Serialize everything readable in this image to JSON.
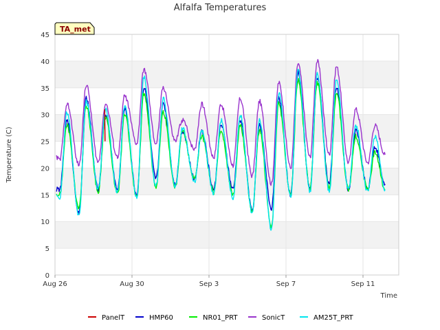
{
  "chart_data": {
    "type": "line",
    "title": "Alfalfa Temperatures",
    "xlabel": "Time",
    "ylabel": "Temperature (C)",
    "badge": "TA_met",
    "ylim": [
      0,
      45
    ],
    "yticks": [
      0,
      5,
      10,
      15,
      20,
      25,
      30,
      35,
      40,
      45
    ],
    "xlim": [
      "Aug 26",
      "Sep 13"
    ],
    "xtick_labels": [
      "Aug 26",
      "Aug 30",
      "Sep 3",
      "Sep 7",
      "Sep 11"
    ],
    "xtick_days": [
      0,
      4,
      8,
      12,
      16
    ],
    "legend_position": "bottom",
    "colors": {
      "PanelT": "#cc0000",
      "HMP60": "#0000cc",
      "NR01_PRT": "#00ee00",
      "SonicT": "#9933cc",
      "AM25T_PRT": "#00e5ee"
    },
    "day_extremes_note_units": "degrees C, daily min/max per series",
    "series": [
      {
        "name": "PanelT",
        "max": [
          null,
          null,
          31.0,
          null,
          null,
          null,
          null,
          null,
          null,
          null,
          null,
          null,
          null,
          null,
          null,
          null,
          null
        ],
        "min": [
          null,
          null,
          25.0,
          null,
          null,
          null,
          null,
          null,
          null,
          null,
          null,
          null,
          null,
          null,
          null,
          null,
          null
        ]
      },
      {
        "name": "HMP60",
        "max": [
          29,
          33,
          30,
          31,
          35,
          32,
          27,
          27,
          28,
          29,
          28,
          33,
          38,
          37,
          35,
          27,
          24
        ],
        "min": [
          16,
          11.5,
          16,
          16,
          15,
          18,
          17,
          18,
          16,
          16,
          12,
          12.5,
          15,
          16,
          17,
          16,
          16
        ],
        "start": 16,
        "end": 17
      },
      {
        "name": "NR01_PRT",
        "max": [
          28,
          31.5,
          29.5,
          30,
          34,
          30.5,
          27,
          26,
          27,
          28,
          27,
          32,
          36.5,
          36,
          34,
          26,
          23
        ],
        "min": [
          15,
          12.5,
          15.5,
          15,
          14.5,
          16.5,
          16.5,
          18,
          15.5,
          15,
          12,
          9,
          15,
          16,
          16,
          16,
          16
        ],
        "start": 15,
        "end": 16
      },
      {
        "name": "SonicT",
        "max": [
          32,
          35.5,
          32,
          33.5,
          38.5,
          35,
          29,
          32,
          32,
          33,
          32.5,
          36,
          39.5,
          40,
          39,
          31,
          28
        ],
        "min": [
          21.5,
          20.5,
          21,
          22,
          24.5,
          24.5,
          25,
          23.5,
          22,
          20.5,
          18.5,
          17,
          20,
          22,
          22.5,
          21,
          21
        ],
        "start": 22,
        "end": 22.5
      },
      {
        "name": "AM25T_PRT",
        "max": [
          30.5,
          32.5,
          31,
          31.5,
          37,
          33,
          27.5,
          27,
          29,
          30,
          29,
          34,
          38.5,
          37.5,
          36.5,
          28,
          26
        ],
        "min": [
          14.5,
          11,
          16,
          15.5,
          14.5,
          16.5,
          16.5,
          17.5,
          15,
          14.5,
          11.5,
          8.5,
          14.5,
          15.5,
          15.5,
          16,
          15.5
        ],
        "start": 15,
        "end": 16
      }
    ]
  }
}
